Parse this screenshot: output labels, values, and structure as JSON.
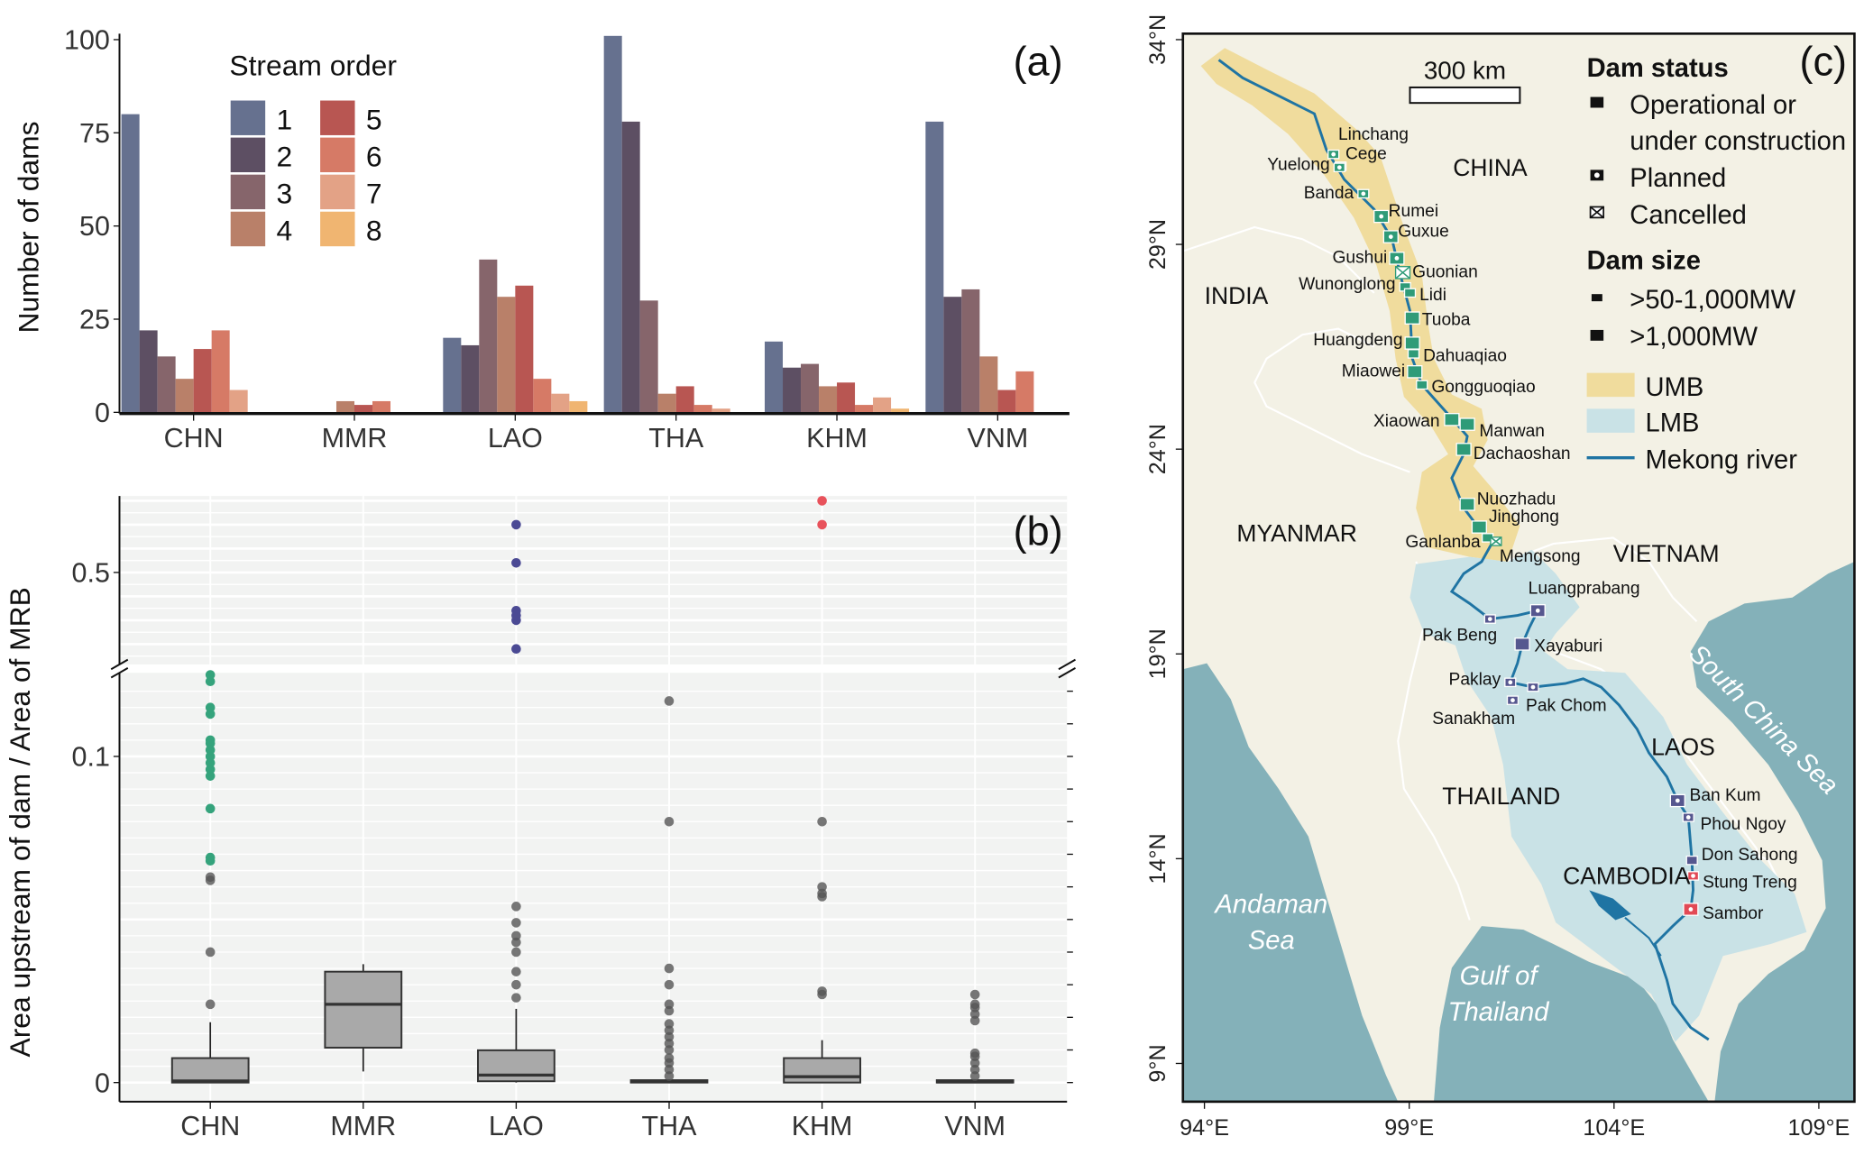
{
  "colors": {
    "stream_order": [
      "#66718f",
      "#5d4f63",
      "#86656b",
      "#b98069",
      "#b85652",
      "#d67a66",
      "#e3a286",
      "#f0b571"
    ],
    "umb": "#f0dc9d",
    "lmb": "#c9e2e6",
    "sea": "#84b1b9",
    "land": "#f3f1e5",
    "river": "#1f74a3",
    "dam_umb": "#2f9b78",
    "dam_lmb": "#56578f",
    "dam_khm": "#e24955",
    "outlier": "#555555",
    "outlier_chn": "#35a37c",
    "outlier_lao": "#4b4a94",
    "outlier_khm": "#e8525b",
    "box": "#a9a9a9"
  },
  "chart_data": [
    {
      "type": "bar",
      "panel_label": "(a)",
      "ylabel": "Number of dams",
      "xlabel": "",
      "ylim": [
        0,
        100
      ],
      "yticks": [
        "0",
        "25",
        "50",
        "75",
        "100"
      ],
      "categories": [
        "CHN",
        "MMR",
        "LAO",
        "THA",
        "KHM",
        "VNM"
      ],
      "legend_title": "Stream order",
      "legend_placement": "top-left",
      "series": [
        {
          "name": "1",
          "values": [
            80,
            0,
            20,
            101,
            19,
            78
          ]
        },
        {
          "name": "2",
          "values": [
            22,
            0,
            18,
            78,
            12,
            31
          ]
        },
        {
          "name": "3",
          "values": [
            15,
            0,
            41,
            30,
            13,
            33
          ]
        },
        {
          "name": "4",
          "values": [
            9,
            3,
            31,
            5,
            7,
            15
          ]
        },
        {
          "name": "5",
          "values": [
            17,
            2,
            34,
            7,
            8,
            6
          ]
        },
        {
          "name": "6",
          "values": [
            22,
            3,
            9,
            2,
            2,
            11
          ]
        },
        {
          "name": "7",
          "values": [
            6,
            0,
            5,
            1,
            4,
            0
          ]
        },
        {
          "name": "8",
          "values": [
            0,
            0,
            3,
            0,
            1,
            0
          ]
        }
      ]
    },
    {
      "type": "boxplot",
      "panel_label": "(b)",
      "ylabel": "Area upstream of dam / Area of MRB",
      "xlabel": "",
      "broken_axis": true,
      "yticks_lower": [
        "0",
        "0.1"
      ],
      "yticks_upper": [
        "0.5"
      ],
      "grid": true,
      "categories": [
        "CHN",
        "MMR",
        "LAO",
        "THA",
        "KHM",
        "VNM"
      ],
      "boxes": [
        {
          "min": 0,
          "q1": 0,
          "median": 0.0005,
          "q3": 0.0075,
          "max": 0.0185,
          "outliers": [
            0.024,
            0.04,
            0.062,
            0.063
          ],
          "highlight_outliers": [
            0.068,
            0.069,
            0.084,
            0.094,
            0.096,
            0.098,
            0.1,
            0.102,
            0.104,
            0.105,
            0.113,
            0.115,
            0.123,
            0.125
          ]
        },
        {
          "min": 0.0034,
          "q1": 0.0107,
          "median": 0.024,
          "q3": 0.034,
          "max": 0.0363,
          "outliers": [],
          "highlight_outliers": []
        },
        {
          "min": 0,
          "q1": 0.0004,
          "median": 0.0023,
          "q3": 0.0099,
          "max": 0.0226,
          "outliers": [
            0.026,
            0.03,
            0.034,
            0.04,
            0.043,
            0.045,
            0.049,
            0.054
          ],
          "highlight_outliers": [
            0.34,
            0.4,
            0.41,
            0.42,
            0.52,
            0.6
          ]
        },
        {
          "min": 0,
          "q1": 0,
          "median": 0.0003,
          "q3": 0.0007,
          "max": 0.001,
          "outliers": [
            0.002,
            0.004,
            0.006,
            0.0075,
            0.01,
            0.012,
            0.014,
            0.016,
            0.018,
            0.022,
            0.024,
            0.03,
            0.035,
            0.08,
            0.117
          ],
          "highlight_outliers": []
        },
        {
          "min": 0,
          "q1": 0,
          "median": 0.0018,
          "q3": 0.0075,
          "max": 0.013,
          "outliers": [
            0.027,
            0.028,
            0.057,
            0.058,
            0.06,
            0.08
          ],
          "highlight_outliers": [
            0.6,
            0.65
          ]
        },
        {
          "min": 0,
          "q1": 0,
          "median": 0.0002,
          "q3": 0.0006,
          "max": 0.001,
          "outliers": [
            0.002,
            0.004,
            0.006,
            0.008,
            0.009,
            0.019,
            0.021,
            0.023,
            0.024,
            0.027
          ],
          "highlight_outliers": []
        }
      ]
    }
  ],
  "map": {
    "panel_label": "(c)",
    "scale_bar": "300 km",
    "lat_ticks": [
      "34°N",
      "29°N",
      "24°N",
      "19°N",
      "14°N",
      "9°N"
    ],
    "lon_ticks": [
      "94°E",
      "99°E",
      "104°E",
      "109°E"
    ],
    "countries": [
      "CHINA",
      "INDIA",
      "MYANMAR",
      "VIETNAM",
      "LAOS",
      "THAILAND",
      "CAMBODIA"
    ],
    "seas": [
      "Andaman",
      "Sea",
      "Gulf of",
      "Thailand",
      "South China Sea"
    ],
    "legend": {
      "status_title": "Dam status",
      "operational_1": "Operational or",
      "operational_2": "under construction",
      "planned": "Planned",
      "cancelled": "Cancelled",
      "size_title": "Dam size",
      "size_small": ">50-1,000MW",
      "size_large": ">1,000MW",
      "umb": "UMB",
      "lmb": "LMB",
      "river": "Mekong river"
    },
    "dams": [
      {
        "name": "Linchang",
        "status": "planned",
        "size": "small",
        "region": "umb"
      },
      {
        "name": "Cege",
        "status": "planned",
        "size": "small",
        "region": "umb"
      },
      {
        "name": "Yuelong",
        "status": "planned",
        "size": "small",
        "region": "umb"
      },
      {
        "name": "Banda",
        "status": "planned",
        "size": "small",
        "region": "umb"
      },
      {
        "name": "Rumei",
        "status": "planned",
        "size": "large",
        "region": "umb"
      },
      {
        "name": "Guxue",
        "status": "planned",
        "size": "large",
        "region": "umb"
      },
      {
        "name": "Gushui",
        "status": "planned",
        "size": "large",
        "region": "umb"
      },
      {
        "name": "Guonian",
        "status": "cancelled",
        "size": "large",
        "region": "umb"
      },
      {
        "name": "Wunonglong",
        "status": "operational",
        "size": "small",
        "region": "umb"
      },
      {
        "name": "Lidi",
        "status": "operational",
        "size": "small",
        "region": "umb"
      },
      {
        "name": "Tuoba",
        "status": "operational",
        "size": "large",
        "region": "umb"
      },
      {
        "name": "Huangdeng",
        "status": "operational",
        "size": "large",
        "region": "umb"
      },
      {
        "name": "Dahuaqiao",
        "status": "operational",
        "size": "small",
        "region": "umb"
      },
      {
        "name": "Miaowei",
        "status": "operational",
        "size": "large",
        "region": "umb"
      },
      {
        "name": "Gongguoqiao",
        "status": "operational",
        "size": "small",
        "region": "umb"
      },
      {
        "name": "Xiaowan",
        "status": "operational",
        "size": "large",
        "region": "umb"
      },
      {
        "name": "Manwan",
        "status": "operational",
        "size": "large",
        "region": "umb"
      },
      {
        "name": "Dachaoshan",
        "status": "operational",
        "size": "large",
        "region": "umb"
      },
      {
        "name": "Nuozhadu",
        "status": "operational",
        "size": "large",
        "region": "umb"
      },
      {
        "name": "Jinghong",
        "status": "operational",
        "size": "large",
        "region": "umb"
      },
      {
        "name": "Ganlanba",
        "status": "operational",
        "size": "small",
        "region": "umb"
      },
      {
        "name": "Mengsong",
        "status": "cancelled",
        "size": "small",
        "region": "umb"
      },
      {
        "name": "Luangprabang",
        "status": "planned",
        "size": "large",
        "region": "lmb"
      },
      {
        "name": "Pak Beng",
        "status": "planned",
        "size": "small",
        "region": "lmb"
      },
      {
        "name": "Xayaburi",
        "status": "operational",
        "size": "large",
        "region": "lmb"
      },
      {
        "name": "Paklay",
        "status": "planned",
        "size": "small",
        "region": "lmb"
      },
      {
        "name": "Sanakham",
        "status": "planned",
        "size": "small",
        "region": "lmb"
      },
      {
        "name": "Pak Chom",
        "status": "planned",
        "size": "small",
        "region": "lmb"
      },
      {
        "name": "Ban Kum",
        "status": "planned",
        "size": "large",
        "region": "lmb"
      },
      {
        "name": "Phou Ngoy",
        "status": "planned",
        "size": "small",
        "region": "lmb"
      },
      {
        "name": "Don Sahong",
        "status": "operational",
        "size": "small",
        "region": "lmb"
      },
      {
        "name": "Stung Treng",
        "status": "planned",
        "size": "small",
        "region": "khm"
      },
      {
        "name": "Sambor",
        "status": "planned",
        "size": "large",
        "region": "khm"
      }
    ]
  }
}
